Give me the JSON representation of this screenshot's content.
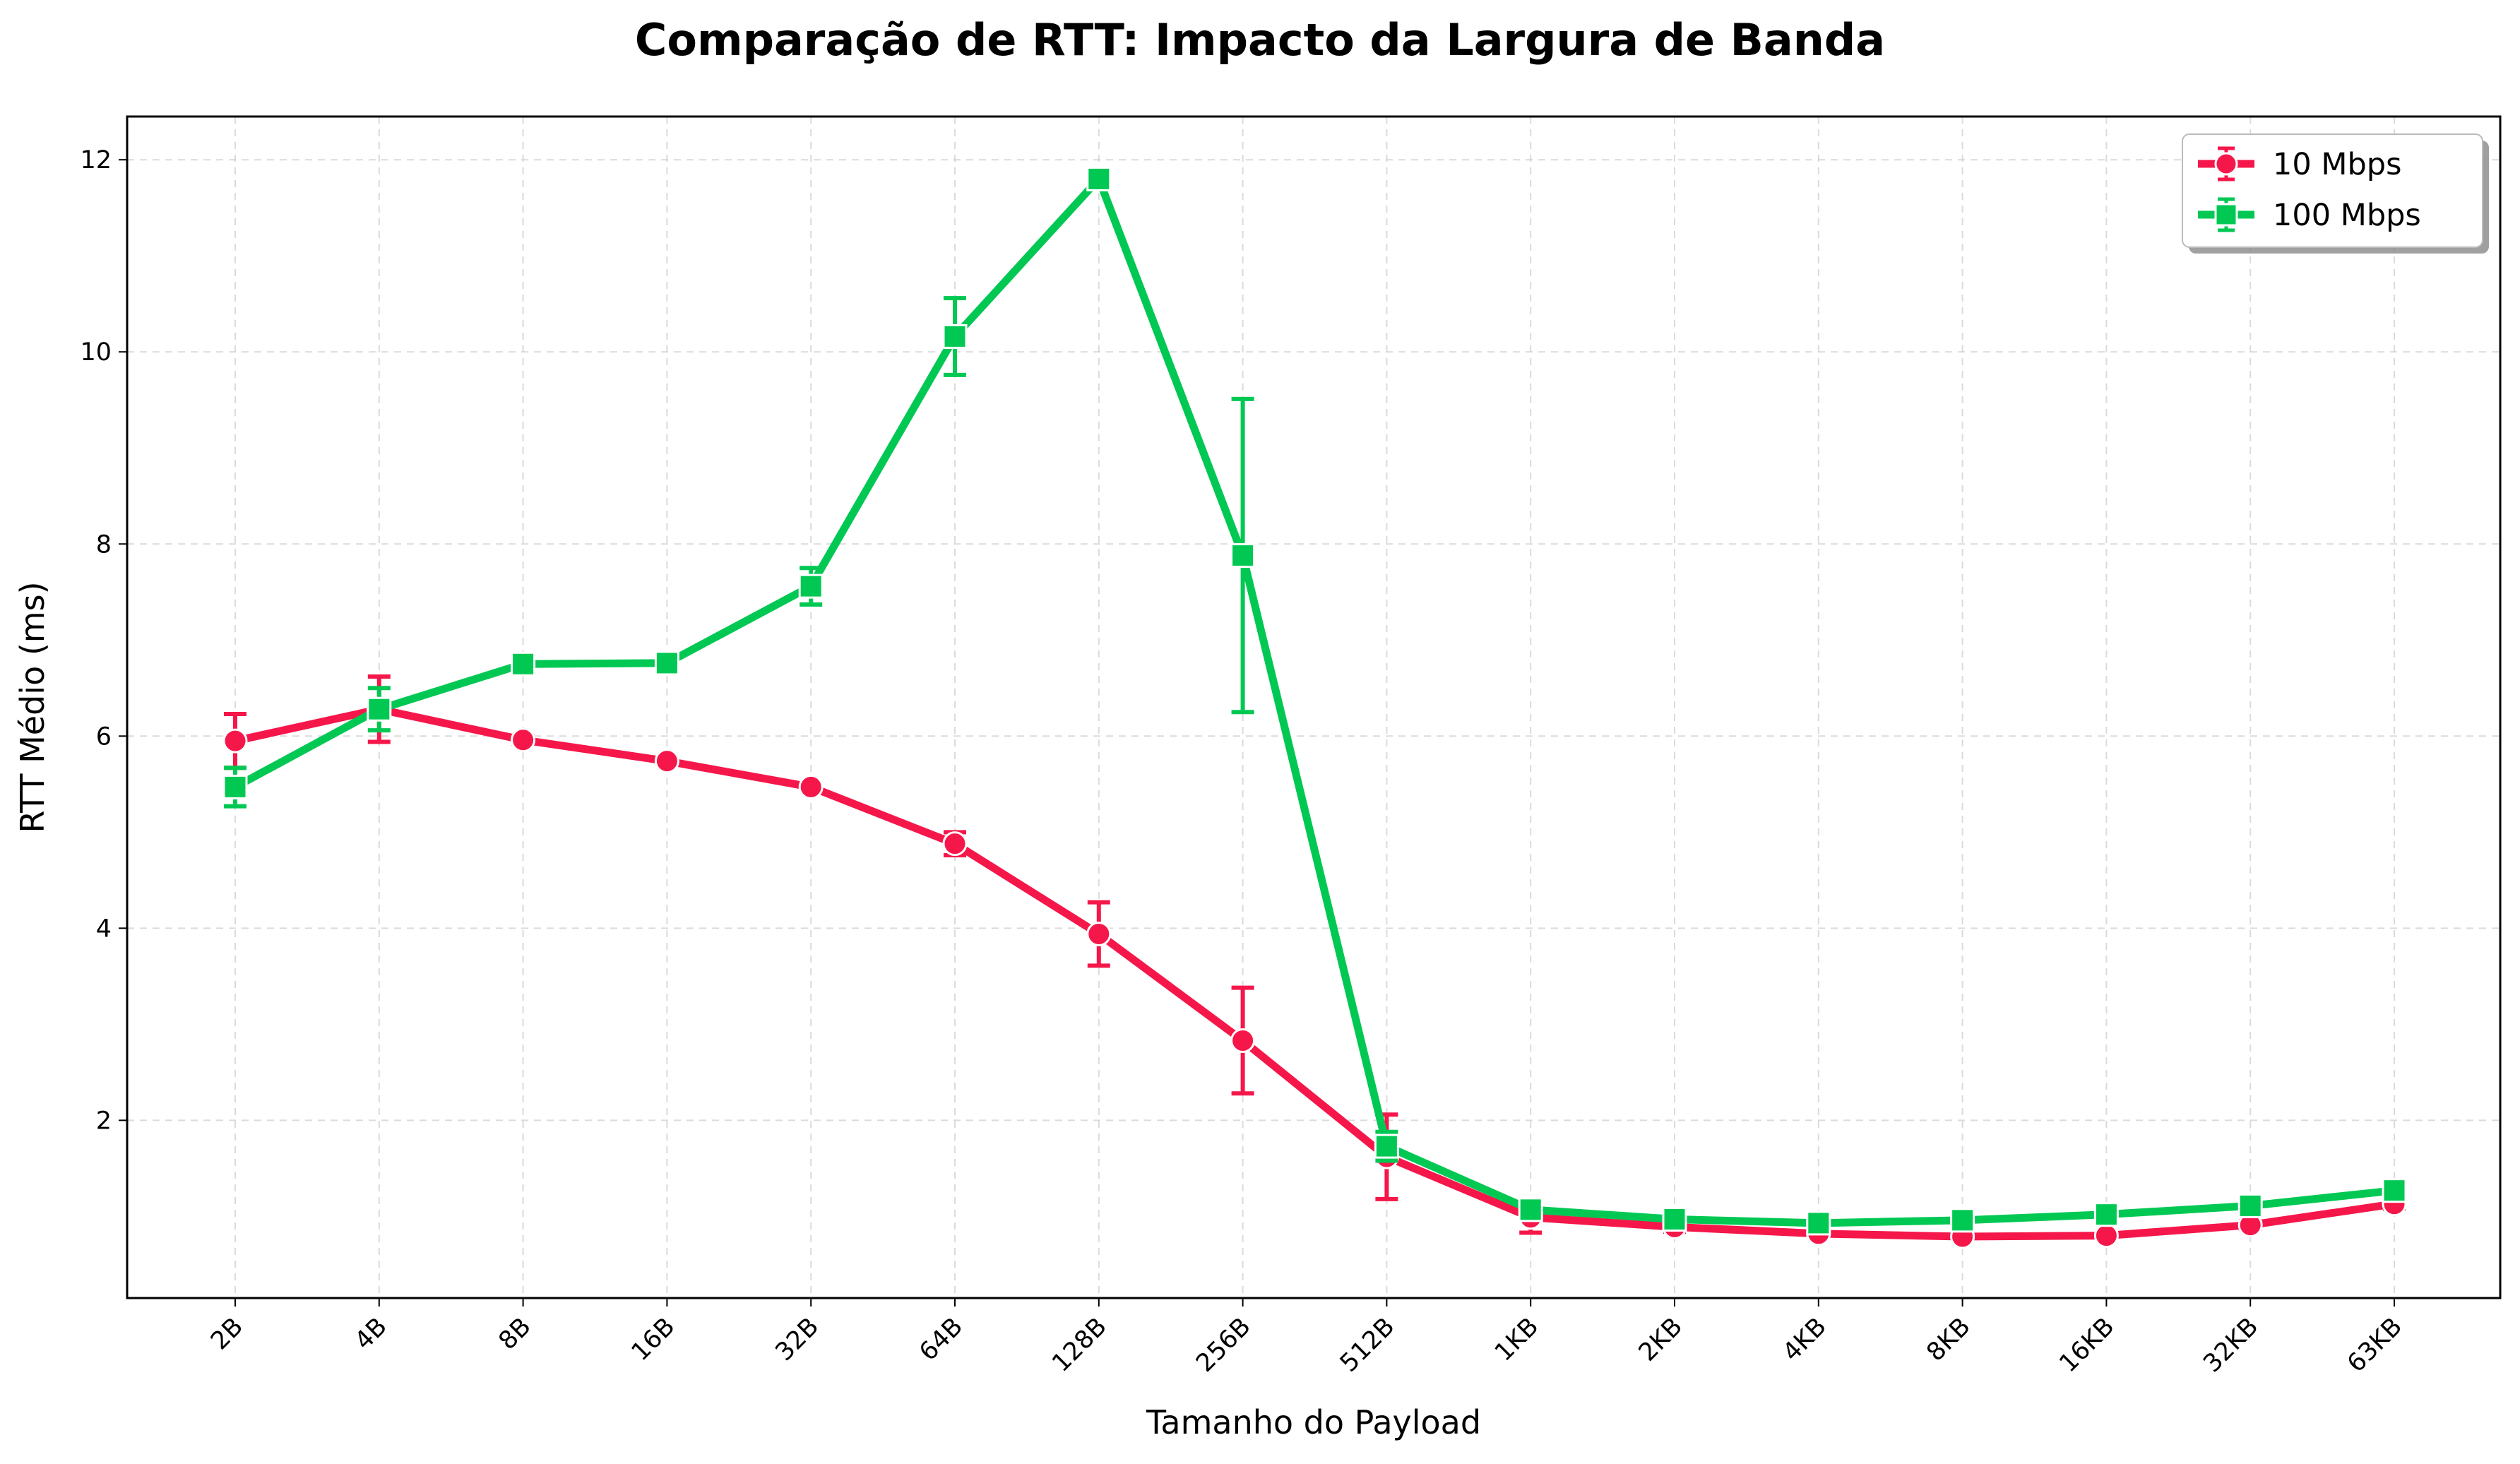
{
  "chart_data": {
    "type": "line",
    "title": "Comparação de RTT: Impacto da Largura de Banda",
    "xlabel": "Tamanho do Payload",
    "ylabel": "RTT Médio (ms)",
    "categories": [
      "2B",
      "4B",
      "8B",
      "16B",
      "32B",
      "64B",
      "128B",
      "256B",
      "512B",
      "1KB",
      "2KB",
      "4KB",
      "8KB",
      "16KB",
      "32KB",
      "63KB"
    ],
    "ylim": [
      0.15,
      12.45
    ],
    "yticks": [
      2,
      4,
      6,
      8,
      10,
      12
    ],
    "grid": true,
    "legend_position": "top-right",
    "series": [
      {
        "name": "10 Mbps",
        "color": "#f5174a",
        "marker": "circle",
        "values": [
          5.95,
          6.28,
          5.96,
          5.74,
          5.47,
          4.88,
          3.94,
          2.83,
          1.62,
          0.99,
          0.89,
          0.82,
          0.79,
          0.8,
          0.91,
          1.13
        ],
        "errors": [
          0.28,
          0.34,
          0.04,
          0.03,
          0.03,
          0.12,
          0.33,
          0.55,
          0.44,
          0.16,
          0.05,
          0.03,
          0.03,
          0.03,
          0.04,
          0.05
        ]
      },
      {
        "name": "100 Mbps",
        "color": "#00c853",
        "marker": "square",
        "values": [
          5.47,
          6.28,
          6.75,
          6.76,
          7.56,
          10.16,
          11.8,
          7.88,
          1.73,
          1.07,
          0.97,
          0.93,
          0.96,
          1.02,
          1.11,
          1.27
        ],
        "errors": [
          0.2,
          0.22,
          0.04,
          0.04,
          0.19,
          0.4,
          0.08,
          1.63,
          0.15,
          0.05,
          0.03,
          0.03,
          0.03,
          0.03,
          0.03,
          0.03
        ]
      }
    ]
  }
}
